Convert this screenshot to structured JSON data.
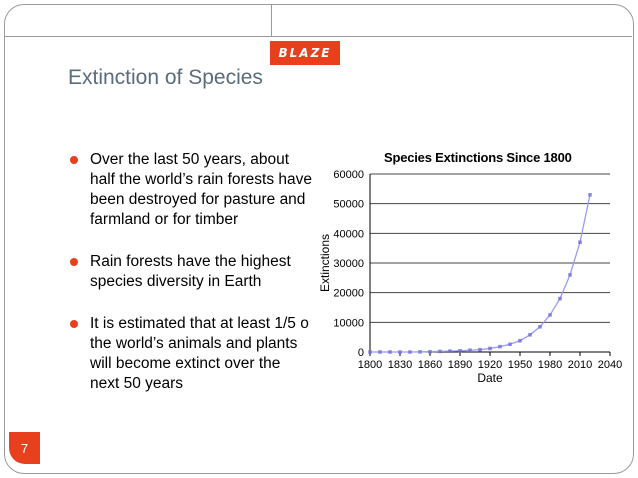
{
  "brand": {
    "logo_text": "BLAZE"
  },
  "slide": {
    "title": "Extinction of Species",
    "page_number": "7",
    "bullets": [
      "Over the last 50 years, about\nhalf the world’s rain forests have\nbeen destroyed for pasture and\nfarmland or for timber",
      "Rain forests have the highest\nspecies diversity in Earth",
      "It is estimated that at least 1/5 o\nthe world’s animals and plants\nwill become extinct over the\nnext 50 years"
    ]
  },
  "colors": {
    "accent": "#e8401c",
    "title": "#5a6c7d",
    "line": "#9a9af5",
    "marker": "#6a6ad8"
  },
  "chart_data": {
    "type": "line",
    "title": "Species Extinctions Since 1800",
    "xlabel": "Date",
    "ylabel": "Extinctions",
    "xlim": [
      1800,
      2040
    ],
    "ylim": [
      0,
      60000
    ],
    "x_ticks": [
      1800,
      1830,
      1860,
      1890,
      1920,
      1950,
      1980,
      2010,
      2040
    ],
    "y_ticks": [
      0,
      10000,
      20000,
      30000,
      40000,
      50000,
      60000
    ],
    "grid": true,
    "series": [
      {
        "name": "Extinctions",
        "x": [
          1800,
          1810,
          1820,
          1830,
          1840,
          1850,
          1860,
          1870,
          1880,
          1890,
          1900,
          1910,
          1920,
          1930,
          1940,
          1950,
          1960,
          1970,
          1980,
          1990,
          2000,
          2010,
          2020
        ],
        "y": [
          0,
          0,
          0,
          0,
          0,
          50,
          100,
          200,
          300,
          400,
          600,
          800,
          1200,
          1800,
          2600,
          3800,
          5800,
          8500,
          12500,
          18000,
          26000,
          37000,
          53000
        ]
      }
    ]
  }
}
